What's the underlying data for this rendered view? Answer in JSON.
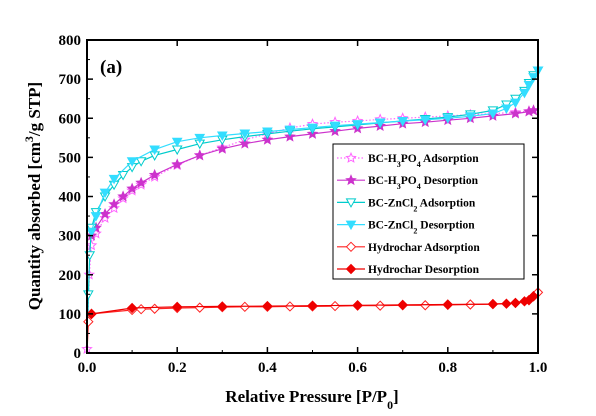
{
  "chart_data": {
    "type": "line",
    "panel_label": "(a)",
    "xlabel": "Relative Pressure [P/P0]",
    "ylabel": "Quantity absorbed [cm3/g STP]",
    "xlim": [
      0.0,
      1.0
    ],
    "ylim": [
      0,
      800
    ],
    "xticks": [
      "0.0",
      "0.2",
      "0.4",
      "0.6",
      "0.8",
      "1.0"
    ],
    "yticks": [
      "0",
      "100",
      "200",
      "300",
      "400",
      "500",
      "600",
      "700",
      "800"
    ],
    "grid": false,
    "legend_position": "right",
    "series": [
      {
        "name": "BC-H3PO4 Adsorption",
        "color": "#ff66ff",
        "marker": "star-open",
        "line": "dotted",
        "x": [
          0.0,
          0.005,
          0.01,
          0.02,
          0.04,
          0.06,
          0.08,
          0.1,
          0.12,
          0.15,
          0.2,
          0.25,
          0.3,
          0.35,
          0.4,
          0.45,
          0.5,
          0.55,
          0.6,
          0.65,
          0.7,
          0.75,
          0.8,
          0.85,
          0.9,
          0.95,
          0.98,
          0.99
        ],
        "y": [
          10,
          200,
          275,
          305,
          345,
          370,
          395,
          415,
          430,
          450,
          480,
          505,
          525,
          545,
          560,
          575,
          585,
          590,
          593,
          597,
          600,
          603,
          606,
          609,
          612,
          615,
          618,
          620
        ]
      },
      {
        "name": "BC-H3PO4 Desorption",
        "color": "#cc33cc",
        "marker": "star",
        "line": "solid",
        "x": [
          0.99,
          0.98,
          0.95,
          0.9,
          0.85,
          0.8,
          0.75,
          0.7,
          0.65,
          0.6,
          0.55,
          0.5,
          0.45,
          0.4,
          0.35,
          0.3,
          0.25,
          0.2,
          0.15,
          0.12,
          0.1,
          0.08,
          0.06,
          0.04,
          0.02,
          0.01
        ],
        "y": [
          620,
          617,
          612,
          606,
          600,
          595,
          590,
          586,
          580,
          574,
          567,
          560,
          553,
          545,
          535,
          522,
          505,
          482,
          455,
          435,
          420,
          400,
          380,
          355,
          320,
          300
        ]
      },
      {
        "name": "BC-ZnCl2 Adsorption",
        "color": "#00cccc",
        "marker": "triangle-down-open",
        "line": "solid",
        "x": [
          0.0,
          0.003,
          0.006,
          0.01,
          0.02,
          0.04,
          0.06,
          0.08,
          0.1,
          0.12,
          0.15,
          0.2,
          0.25,
          0.3,
          0.35,
          0.4,
          0.45,
          0.5,
          0.55,
          0.6,
          0.65,
          0.7,
          0.75,
          0.8,
          0.85,
          0.9,
          0.93,
          0.95,
          0.97,
          0.98,
          0.99,
          1.0
        ],
        "y": [
          0,
          150,
          250,
          320,
          360,
          400,
          430,
          455,
          475,
          490,
          505,
          520,
          535,
          545,
          553,
          560,
          567,
          573,
          578,
          583,
          588,
          593,
          598,
          603,
          610,
          620,
          635,
          650,
          670,
          690,
          710,
          722
        ]
      },
      {
        "name": "BC-ZnCl2 Desorption",
        "color": "#33ddff",
        "marker": "triangle-down",
        "line": "solid",
        "x": [
          1.0,
          0.99,
          0.98,
          0.97,
          0.95,
          0.93,
          0.9,
          0.85,
          0.8,
          0.75,
          0.7,
          0.65,
          0.6,
          0.55,
          0.5,
          0.45,
          0.4,
          0.35,
          0.3,
          0.25,
          0.2,
          0.15,
          0.1,
          0.06,
          0.04,
          0.02,
          0.01
        ],
        "y": [
          722,
          705,
          685,
          665,
          640,
          625,
          612,
          605,
          600,
          596,
          593,
          589,
          585,
          581,
          576,
          571,
          566,
          561,
          556,
          550,
          540,
          520,
          490,
          445,
          410,
          350,
          310
        ]
      },
      {
        "name": "Hydrochar Adsorption",
        "color": "#ff2222",
        "marker": "diamond-open",
        "line": "solid",
        "x": [
          0.0,
          0.003,
          0.01,
          0.1,
          0.12,
          0.15,
          0.2,
          0.25,
          0.3,
          0.35,
          0.4,
          0.45,
          0.5,
          0.55,
          0.6,
          0.65,
          0.7,
          0.75,
          0.8,
          0.85,
          0.9,
          0.95,
          0.98,
          0.99,
          1.0
        ],
        "y": [
          0,
          80,
          100,
          110,
          112,
          113,
          115,
          116,
          117,
          118,
          118,
          119,
          119,
          120,
          121,
          121,
          122,
          122,
          123,
          124,
          125,
          128,
          135,
          145,
          155
        ]
      },
      {
        "name": "Hydrochar Desorption",
        "color": "#ee0000",
        "marker": "diamond",
        "line": "solid",
        "x": [
          0.99,
          0.98,
          0.97,
          0.95,
          0.93,
          0.9,
          0.8,
          0.7,
          0.6,
          0.5,
          0.4,
          0.3,
          0.2,
          0.1,
          0.01
        ],
        "y": [
          145,
          135,
          132,
          128,
          126,
          125,
          124,
          123,
          122,
          121,
          120,
          119,
          118,
          115,
          100
        ]
      }
    ]
  }
}
